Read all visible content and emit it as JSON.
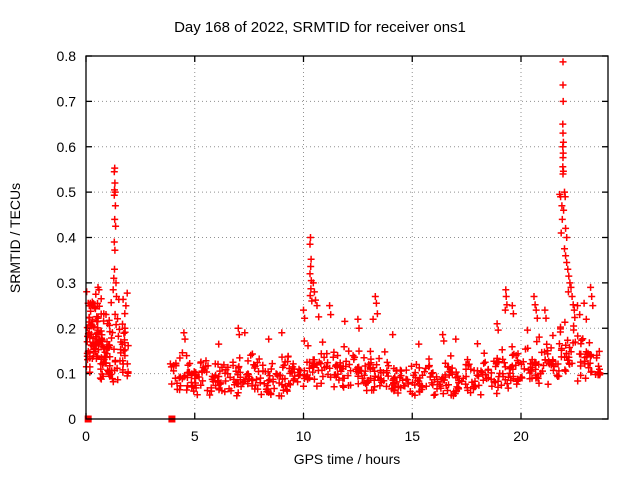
{
  "chart_data": {
    "type": "scatter",
    "title": "Day 168 of 2022, SRMTID for receiver ons1",
    "xlabel": "GPS time / hours",
    "ylabel": "SRMTID / TECUs",
    "xlim": [
      0,
      24
    ],
    "ylim": [
      0,
      0.8
    ],
    "xticks": [
      0,
      5,
      10,
      15,
      20
    ],
    "yticks": [
      0,
      0.1,
      0.2,
      0.3,
      0.4,
      0.5,
      0.6,
      0.7,
      0.8
    ],
    "grid": true,
    "grid_color": "#909090",
    "border_color": "#000000",
    "marker": "plus",
    "marker_color": "#ff0000",
    "zero_square_markers": [
      [
        0.1,
        0
      ],
      [
        3.95,
        0
      ]
    ],
    "notable_points": [
      [
        0.02,
        0.115
      ],
      [
        0.2,
        0.255
      ],
      [
        0.45,
        0.275
      ],
      [
        0.55,
        0.29
      ],
      [
        0.6,
        0.285
      ],
      [
        0.7,
        0.265
      ],
      [
        1.25,
        0.285
      ],
      [
        1.28,
        0.31
      ],
      [
        1.3,
        0.545
      ],
      [
        1.3,
        0.493
      ],
      [
        1.3,
        0.39
      ],
      [
        1.31,
        0.505
      ],
      [
        1.31,
        0.33
      ],
      [
        1.32,
        0.553
      ],
      [
        1.32,
        0.44
      ],
      [
        1.33,
        0.52
      ],
      [
        1.33,
        0.372
      ],
      [
        1.34,
        0.5
      ],
      [
        1.35,
        0.47
      ],
      [
        1.36,
        0.425
      ],
      [
        1.38,
        0.3
      ],
      [
        1.4,
        0.27
      ],
      [
        4.5,
        0.19
      ],
      [
        4.55,
        0.176
      ],
      [
        6.1,
        0.165
      ],
      [
        7.0,
        0.2
      ],
      [
        7.05,
        0.186
      ],
      [
        7.3,
        0.19
      ],
      [
        8.4,
        0.176
      ],
      [
        9.0,
        0.19
      ],
      [
        10.0,
        0.24
      ],
      [
        10.05,
        0.222
      ],
      [
        10.3,
        0.385
      ],
      [
        10.3,
        0.32
      ],
      [
        10.31,
        0.272
      ],
      [
        10.32,
        0.4
      ],
      [
        10.33,
        0.336
      ],
      [
        10.34,
        0.287
      ],
      [
        10.35,
        0.352
      ],
      [
        10.36,
        0.305
      ],
      [
        10.38,
        0.26
      ],
      [
        10.45,
        0.3
      ],
      [
        10.5,
        0.28
      ],
      [
        10.55,
        0.262
      ],
      [
        10.62,
        0.25
      ],
      [
        10.7,
        0.225
      ],
      [
        11.2,
        0.25
      ],
      [
        11.25,
        0.23
      ],
      [
        11.9,
        0.215
      ],
      [
        12.5,
        0.22
      ],
      [
        12.55,
        0.2
      ],
      [
        13.2,
        0.22
      ],
      [
        13.3,
        0.27
      ],
      [
        13.35,
        0.255
      ],
      [
        13.4,
        0.232
      ],
      [
        14.1,
        0.186
      ],
      [
        15.3,
        0.165
      ],
      [
        16.4,
        0.186
      ],
      [
        16.45,
        0.172
      ],
      [
        17.0,
        0.176
      ],
      [
        18.0,
        0.166
      ],
      [
        18.9,
        0.21
      ],
      [
        18.95,
        0.196
      ],
      [
        19.28,
        0.24
      ],
      [
        19.3,
        0.285
      ],
      [
        19.32,
        0.27
      ],
      [
        19.35,
        0.252
      ],
      [
        19.6,
        0.25
      ],
      [
        19.65,
        0.232
      ],
      [
        20.3,
        0.196
      ],
      [
        20.6,
        0.27
      ],
      [
        20.65,
        0.252
      ],
      [
        20.7,
        0.24
      ],
      [
        20.75,
        0.222
      ],
      [
        21.1,
        0.24
      ],
      [
        21.15,
        0.222
      ],
      [
        21.93,
        0.787
      ],
      [
        21.93,
        0.736
      ],
      [
        21.94,
        0.7
      ],
      [
        21.92,
        0.65
      ],
      [
        21.93,
        0.63
      ],
      [
        21.95,
        0.61
      ],
      [
        21.92,
        0.6
      ],
      [
        21.94,
        0.586
      ],
      [
        21.93,
        0.576
      ],
      [
        21.92,
        0.556
      ],
      [
        21.95,
        0.546
      ],
      [
        21.93,
        0.54
      ],
      [
        21.78,
        0.495
      ],
      [
        21.82,
        0.49
      ],
      [
        22.0,
        0.5
      ],
      [
        22.03,
        0.49
      ],
      [
        21.88,
        0.47
      ],
      [
        21.96,
        0.46
      ],
      [
        21.9,
        0.44
      ],
      [
        22.05,
        0.42
      ],
      [
        21.85,
        0.41
      ],
      [
        22.1,
        0.4
      ],
      [
        22.0,
        0.375
      ],
      [
        22.05,
        0.36
      ],
      [
        22.1,
        0.345
      ],
      [
        22.15,
        0.33
      ],
      [
        22.2,
        0.315
      ],
      [
        22.25,
        0.3
      ],
      [
        22.3,
        0.29
      ],
      [
        22.18,
        0.28
      ],
      [
        22.35,
        0.27
      ],
      [
        22.4,
        0.252
      ],
      [
        22.45,
        0.24
      ],
      [
        22.6,
        0.25
      ],
      [
        22.7,
        0.23
      ],
      [
        22.9,
        0.255
      ],
      [
        23.0,
        0.22
      ],
      [
        23.2,
        0.29
      ],
      [
        23.25,
        0.27
      ],
      [
        23.3,
        0.25
      ]
    ],
    "band_clusters": [
      {
        "x0": 0.03,
        "x1": 0.65,
        "n": 70,
        "ylo": 0.095,
        "yhi": 0.295
      },
      {
        "x0": 0.65,
        "x1": 1.15,
        "n": 50,
        "ylo": 0.085,
        "yhi": 0.27
      },
      {
        "x0": 1.15,
        "x1": 1.95,
        "n": 45,
        "ylo": 0.075,
        "yhi": 0.28
      },
      {
        "x0": 3.88,
        "x1": 4.4,
        "n": 16,
        "ylo": 0.05,
        "yhi": 0.15
      },
      {
        "x0": 4.4,
        "x1": 5.0,
        "n": 20,
        "ylo": 0.06,
        "yhi": 0.16
      },
      {
        "x0": 5.0,
        "x1": 6.0,
        "n": 32,
        "ylo": 0.05,
        "yhi": 0.14
      },
      {
        "x0": 6.0,
        "x1": 7.0,
        "n": 32,
        "ylo": 0.05,
        "yhi": 0.15
      },
      {
        "x0": 7.0,
        "x1": 8.0,
        "n": 32,
        "ylo": 0.058,
        "yhi": 0.16
      },
      {
        "x0": 8.0,
        "x1": 9.0,
        "n": 32,
        "ylo": 0.05,
        "yhi": 0.15
      },
      {
        "x0": 9.0,
        "x1": 10.0,
        "n": 32,
        "ylo": 0.058,
        "yhi": 0.16
      },
      {
        "x0": 10.0,
        "x1": 11.0,
        "n": 34,
        "ylo": 0.065,
        "yhi": 0.18
      },
      {
        "x0": 11.0,
        "x1": 12.0,
        "n": 32,
        "ylo": 0.06,
        "yhi": 0.17
      },
      {
        "x0": 12.0,
        "x1": 13.0,
        "n": 32,
        "ylo": 0.058,
        "yhi": 0.16
      },
      {
        "x0": 13.0,
        "x1": 14.0,
        "n": 32,
        "ylo": 0.06,
        "yhi": 0.17
      },
      {
        "x0": 14.0,
        "x1": 15.0,
        "n": 32,
        "ylo": 0.05,
        "yhi": 0.14
      },
      {
        "x0": 15.0,
        "x1": 16.0,
        "n": 32,
        "ylo": 0.05,
        "yhi": 0.14
      },
      {
        "x0": 16.0,
        "x1": 17.0,
        "n": 32,
        "ylo": 0.05,
        "yhi": 0.148
      },
      {
        "x0": 17.0,
        "x1": 18.0,
        "n": 32,
        "ylo": 0.05,
        "yhi": 0.14
      },
      {
        "x0": 18.0,
        "x1": 19.0,
        "n": 32,
        "ylo": 0.052,
        "yhi": 0.15
      },
      {
        "x0": 19.0,
        "x1": 20.0,
        "n": 34,
        "ylo": 0.065,
        "yhi": 0.18
      },
      {
        "x0": 20.0,
        "x1": 21.0,
        "n": 34,
        "ylo": 0.07,
        "yhi": 0.185
      },
      {
        "x0": 21.0,
        "x1": 21.8,
        "n": 26,
        "ylo": 0.075,
        "yhi": 0.195
      },
      {
        "x0": 21.8,
        "x1": 22.5,
        "n": 26,
        "ylo": 0.095,
        "yhi": 0.24
      },
      {
        "x0": 22.5,
        "x1": 23.3,
        "n": 26,
        "ylo": 0.08,
        "yhi": 0.2
      },
      {
        "x0": 23.3,
        "x1": 23.65,
        "n": 12,
        "ylo": 0.08,
        "yhi": 0.16
      }
    ],
    "prng_seed": 20220168
  }
}
